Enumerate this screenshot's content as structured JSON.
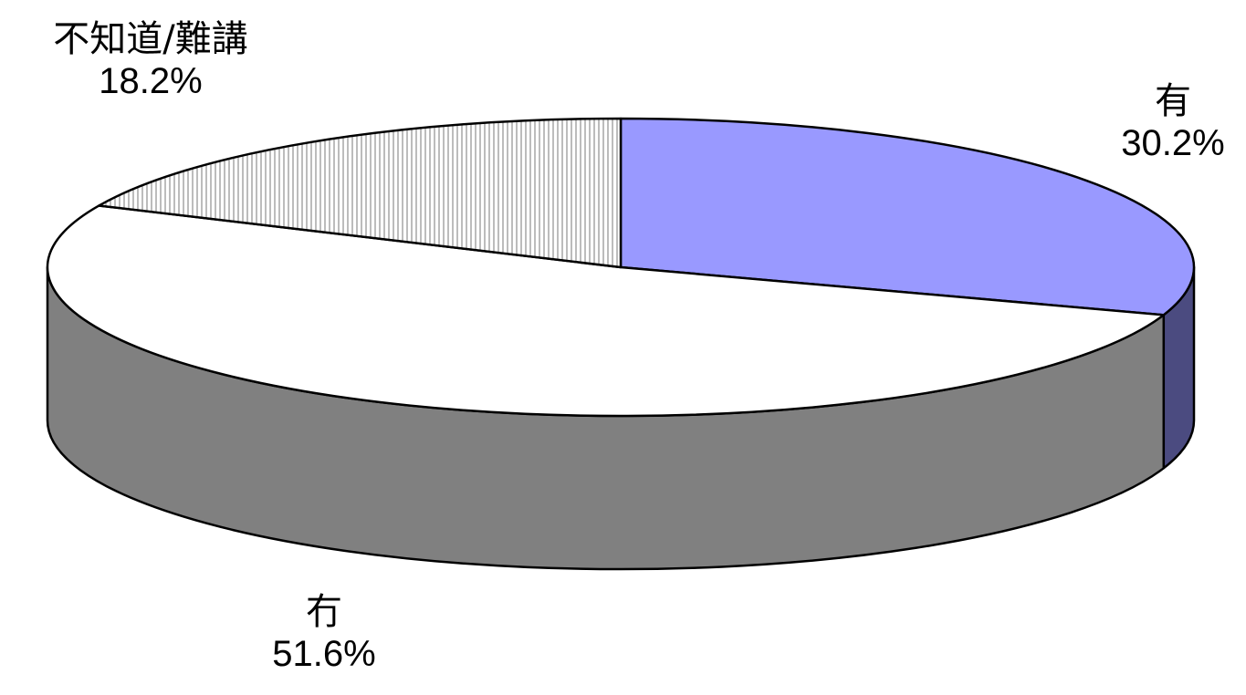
{
  "chart_data": {
    "type": "pie",
    "style": "3d",
    "slices": [
      {
        "label": "有",
        "value": 30.2,
        "value_label": "30.2%",
        "color": "#9999ff",
        "side_color": "#4b4b80",
        "pattern": "solid"
      },
      {
        "label": "冇",
        "value": 51.6,
        "value_label": "51.6%",
        "color": "#ffffff",
        "side_color": "#808080",
        "pattern": "solid"
      },
      {
        "label": "不知道/難講",
        "value": 18.2,
        "value_label": "18.2%",
        "color": "#ffffff",
        "side_color": "#9a9a9a",
        "pattern": "vertical-lines"
      }
    ],
    "start_angle_deg": -90,
    "direction": "clockwise",
    "legend": "none"
  }
}
